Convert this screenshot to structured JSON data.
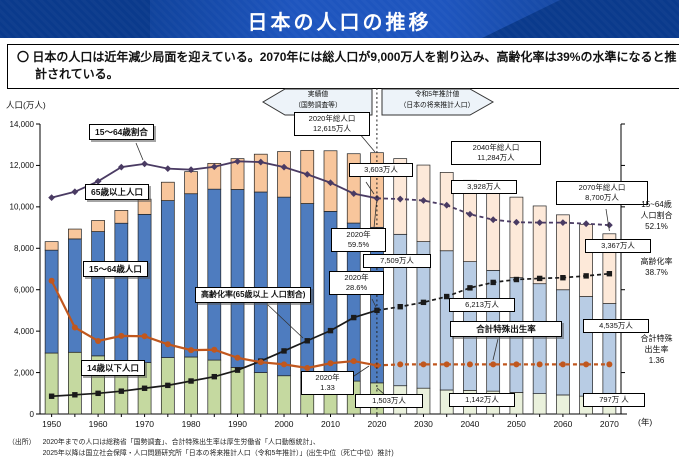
{
  "header": {
    "title": "日本の人口の推移"
  },
  "statement": {
    "text": "〇 日本の人口は近年減少局面を迎えている。2070年には総人口が9,000万人を割り込み、高齢化率は39%の水準になると推計されている。"
  },
  "chart": {
    "y_axis_title": "人口(万人)",
    "x_axis_unit": "(年)",
    "period_arrows": {
      "actual": "実績値\n（国勢調査等）",
      "projection": "令和5年推計値\n（日本の将来推計人口）"
    },
    "series_labels": {
      "ratio_15_64": "15～64歳割合",
      "pop_65_plus": "65歳以上人口",
      "pop_15_64": "15～64歳人口",
      "pop_under_14": "14歳以下人口",
      "aging_rate": "高齢化率(65歳以上 人口割合)",
      "fertility_rate": "合計特殊出生率"
    },
    "callouts": {
      "total_2020": "2020年総人口\n12,615万人",
      "pop65_2020": "3,603万人",
      "ratio_2020": "2020年\n59.5%",
      "pop1564_2020": "7,509万人",
      "aging_2020": "2020年\n28.6%",
      "tfr_2020": "2020年\n1.33",
      "pop014_2020": "1,503万人",
      "total_2040": "2040年総人口\n11,284万人",
      "pop65_2040": "3,928万人",
      "pop1564_2040": "6,213万人",
      "pop014_2040": "1,142万人",
      "total_2070": "2070年総人口\n8,700万人",
      "pop65_2070": "3,367万人",
      "pop1564_2070": "4,535万人",
      "pop014_2070": "797万 人"
    },
    "right_labels": {
      "ratio": "15~64歳\n人口割合\n52.1%",
      "aging": "高齢化率\n38.7%",
      "tfr": "合計特殊\n出生率\n1.36"
    }
  },
  "chart_data": {
    "type": "bar",
    "subtype": "stacked-bars-with-lines",
    "title": "日本の人口の推移",
    "xlabel": "(年)",
    "ylabel": "人口(万人)",
    "ylim": [
      0,
      14000
    ],
    "ytick_step": 2000,
    "yticks": [
      "0",
      "2,000",
      "4,000",
      "6,000",
      "8,000",
      "10,000",
      "12,000",
      "14,000"
    ],
    "categories": [
      1950,
      1955,
      1960,
      1965,
      1970,
      1975,
      1980,
      1985,
      1990,
      1995,
      2000,
      2005,
      2010,
      2015,
      2020,
      2025,
      2030,
      2035,
      2040,
      2045,
      2050,
      2055,
      2060,
      2065,
      2070
    ],
    "actual_until": 2020,
    "grid": false,
    "legend_position": "in-plot-label-boxes",
    "series": [
      {
        "name": "14歳以下人口",
        "kind": "bar",
        "unit": "万人",
        "values": [
          2943,
          2980,
          2807,
          2517,
          2482,
          2722,
          2751,
          2603,
          2249,
          2001,
          1847,
          1752,
          1680,
          1589,
          1503,
          1365,
          1246,
          1159,
          1142,
          1103,
          1041,
          983,
          920,
          862,
          797
        ]
      },
      {
        "name": "15～64歳人口",
        "kind": "bar",
        "unit": "万人",
        "values": [
          4966,
          5473,
          6000,
          6693,
          7157,
          7581,
          7883,
          8251,
          8590,
          8716,
          8622,
          8409,
          8103,
          7629,
          7509,
          7310,
          7076,
          6722,
          6213,
          5832,
          5540,
          5307,
          5078,
          4809,
          4535
        ]
      },
      {
        "name": "65歳以上人口",
        "kind": "bar",
        "unit": "万人",
        "values": [
          411,
          475,
          535,
          618,
          733,
          887,
          1065,
          1247,
          1489,
          1826,
          2201,
          2567,
          2925,
          3347,
          3603,
          3653,
          3696,
          3782,
          3928,
          3945,
          3888,
          3754,
          3617,
          3487,
          3367
        ]
      },
      {
        "name": "15～64歳割合",
        "kind": "line",
        "unit": "%",
        "marker": "diamond",
        "values": [
          59.7,
          61.3,
          64.2,
          68.1,
          69.0,
          67.7,
          67.4,
          68.2,
          69.7,
          69.5,
          68.1,
          66.1,
          63.8,
          60.8,
          59.5,
          59.3,
          58.9,
          57.6,
          55.1,
          53.6,
          52.9,
          52.8,
          52.8,
          52.5,
          52.1
        ]
      },
      {
        "name": "高齢化率(65歳以上 人口割合)",
        "kind": "line",
        "unit": "%",
        "marker": "square",
        "values": [
          4.9,
          5.3,
          5.7,
          6.3,
          7.1,
          7.9,
          9.1,
          10.3,
          12.1,
          14.6,
          17.4,
          20.2,
          23.0,
          26.6,
          28.6,
          29.6,
          30.8,
          32.4,
          34.8,
          36.3,
          37.1,
          37.4,
          37.6,
          38.1,
          38.7
        ]
      },
      {
        "name": "合計特殊出生率",
        "kind": "line",
        "unit": "",
        "marker": "circle",
        "values": [
          3.65,
          2.37,
          2.0,
          2.14,
          2.13,
          1.91,
          1.75,
          1.76,
          1.54,
          1.42,
          1.36,
          1.26,
          1.39,
          1.45,
          1.33,
          1.36,
          1.36,
          1.36,
          1.36,
          1.36,
          1.36,
          1.36,
          1.36,
          1.36,
          1.36
        ]
      }
    ],
    "colors": {
      "bar_actual": [
        "#C5D9A0",
        "#4E7CBF",
        "#F8C69C"
      ],
      "bar_projection": [
        "#EAF1DC",
        "#B8CCE4",
        "#FDE9D9"
      ],
      "line_ratio": "#4A3B63",
      "line_aging": "#1A1A1A",
      "line_tfr": "#C0571E",
      "header_bg": "#0A3A8C",
      "header_band": "#1E55BE"
    }
  },
  "footer": {
    "source_prefix": "（出所）",
    "line1": "2020年までの人口は総務省「国勢調査」、合計特殊出生率は厚生労働省「人口動態統計」、",
    "line2": "2025年以降は国立社会保障・人口問題研究所「日本の将来推計人口（令和5年推計）」(出生中位（死亡中位）推計)"
  }
}
